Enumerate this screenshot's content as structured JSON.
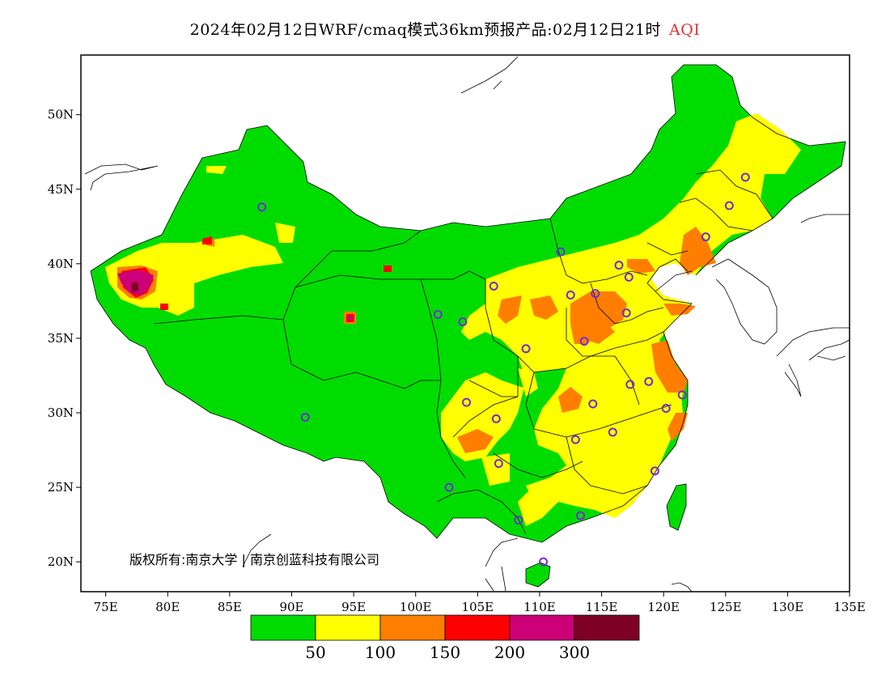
{
  "title": {
    "text": "2024年02月12日WRF/cmaq模式36km预报产品:02月12日21时",
    "variable": "AQI",
    "variable_color": "#e03030"
  },
  "copyright": "版权所有:南京大学 | 南京创蓝科技有限公司",
  "axes": {
    "lat_labels": [
      "50N",
      "45N",
      "40N",
      "35N",
      "30N",
      "25N",
      "20N"
    ],
    "lat_values": [
      50,
      45,
      40,
      35,
      30,
      25,
      20
    ],
    "lon_labels": [
      "75E",
      "80E",
      "85E",
      "90E",
      "95E",
      "100E",
      "105E",
      "110E",
      "115E",
      "120E",
      "125E",
      "130E",
      "135E"
    ],
    "lon_values": [
      75,
      80,
      85,
      90,
      95,
      100,
      105,
      110,
      115,
      120,
      125,
      130,
      135
    ],
    "lon_range": [
      73,
      135
    ],
    "lat_range": [
      18,
      54
    ]
  },
  "legend": {
    "colors": [
      "#00dc00",
      "#ffff00",
      "#ff7e00",
      "#ff0000",
      "#cc0077",
      "#7e0023"
    ],
    "labels": [
      "50",
      "100",
      "150",
      "200",
      "300"
    ]
  },
  "stations": [
    {
      "lon": 87.6,
      "lat": 43.8
    },
    {
      "lon": 91.1,
      "lat": 29.7
    },
    {
      "lon": 101.8,
      "lat": 36.6
    },
    {
      "lon": 103.8,
      "lat": 36.1
    },
    {
      "lon": 106.3,
      "lat": 38.5
    },
    {
      "lon": 111.7,
      "lat": 40.8
    },
    {
      "lon": 116.4,
      "lat": 39.9
    },
    {
      "lon": 117.2,
      "lat": 39.1
    },
    {
      "lon": 114.5,
      "lat": 38.0
    },
    {
      "lon": 112.5,
      "lat": 37.9
    },
    {
      "lon": 117.0,
      "lat": 36.7
    },
    {
      "lon": 113.6,
      "lat": 34.8
    },
    {
      "lon": 108.9,
      "lat": 34.3
    },
    {
      "lon": 117.3,
      "lat": 31.9
    },
    {
      "lon": 118.8,
      "lat": 32.1
    },
    {
      "lon": 120.2,
      "lat": 30.3
    },
    {
      "lon": 121.5,
      "lat": 31.2
    },
    {
      "lon": 114.3,
      "lat": 30.6
    },
    {
      "lon": 112.9,
      "lat": 28.2
    },
    {
      "lon": 115.9,
      "lat": 28.7
    },
    {
      "lon": 119.3,
      "lat": 26.1
    },
    {
      "lon": 113.3,
      "lat": 23.1
    },
    {
      "lon": 108.3,
      "lat": 22.8
    },
    {
      "lon": 110.3,
      "lat": 20.0
    },
    {
      "lon": 102.7,
      "lat": 25.0
    },
    {
      "lon": 106.7,
      "lat": 26.6
    },
    {
      "lon": 106.5,
      "lat": 29.6
    },
    {
      "lon": 104.1,
      "lat": 30.7
    },
    {
      "lon": 123.4,
      "lat": 41.8
    },
    {
      "lon": 125.3,
      "lat": 43.9
    },
    {
      "lon": 126.6,
      "lat": 45.8
    }
  ]
}
